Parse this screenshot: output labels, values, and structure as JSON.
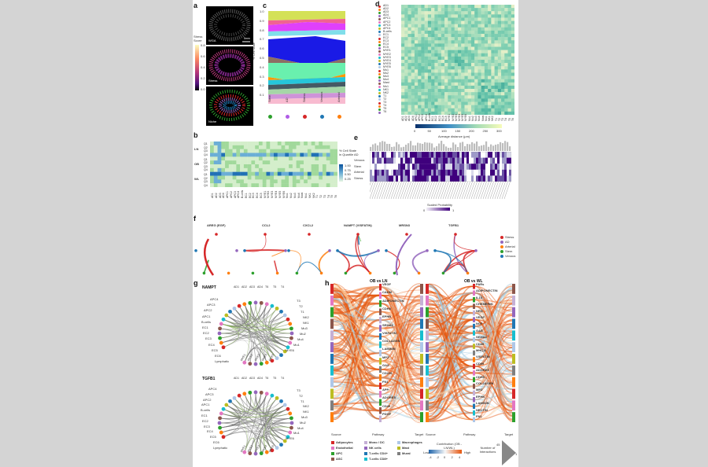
{
  "panel_a": {
    "label": "a",
    "scale_title": "Stress Score",
    "scale_ticks": [
      "0.8",
      "0.6",
      "0.4",
      "0.2",
      "0.0"
    ],
    "scalebar": "5mm",
    "images": [
      "WGA",
      "Stress",
      "Niche"
    ]
  },
  "panel_b": {
    "label": "b",
    "groups": [
      "LN",
      "OB",
      "WL"
    ],
    "quartiles": [
      "Q1",
      "Q2",
      "Q3",
      "Q4"
    ],
    "legend_title": "% Cell State in Quartile",
    "legend_ticks": [
      "1.00",
      "0.75",
      "0.50",
      "0.25"
    ]
  },
  "panel_c": {
    "label": "c",
    "ylabel": "% Cell State",
    "yticks": [
      "1.0",
      "0.9",
      "0.8",
      "0.7",
      "0.6",
      "0.5",
      "0.4",
      "0.3",
      "0.2",
      "0.1"
    ],
    "states": [
      "Stem",
      "AD",
      "Stress",
      "Venous",
      "Arterial"
    ],
    "state_colors": [
      "#2ca02c",
      "#b05ce6",
      "#d62728",
      "#1f77b4",
      "#ff7f0e"
    ]
  },
  "panel_d": {
    "label": "d",
    "cell_types": [
      "AD1",
      "AD2",
      "AD3",
      "AD4",
      "APC1",
      "APC2",
      "APC3",
      "APC4",
      "B-cells",
      "EC1",
      "EC2",
      "EC3",
      "EC4",
      "EC5",
      "MYE1",
      "MYE2",
      "MYE3",
      "MYE4",
      "MYE5",
      "MYE6",
      "Mu1",
      "Mu2",
      "Mu3",
      "Mu4",
      "Mast",
      "Mu1",
      "NK1",
      "NK2",
      "T1",
      "T2",
      "T3",
      "T4",
      "T5",
      "T6"
    ],
    "colorbar_ticks": [
      "0",
      "50",
      "100",
      "150",
      "200",
      "250",
      "300"
    ],
    "colorbar_label": "Average distance (µm)"
  },
  "panel_e": {
    "label": "e",
    "rows": [
      "AD",
      "Venous",
      "Stem",
      "Arterial",
      "Stress"
    ],
    "colorbar_label": "Scaled Probability",
    "colorbar_ticks": [
      "0",
      "1"
    ]
  },
  "panel_f": {
    "label": "f",
    "titles": [
      "AREG (EGF)",
      "CCL2",
      "CXCL2",
      "NAMPT (VISFATIN)",
      "MRSN3",
      "TGFB1"
    ],
    "legend": [
      {
        "name": "Stress",
        "color": "#d62728"
      },
      {
        "name": "AD",
        "color": "#9467bd"
      },
      {
        "name": "Arterial",
        "color": "#ff7f0e"
      },
      {
        "name": "Stem",
        "color": "#2ca02c"
      },
      {
        "name": "Venous",
        "color": "#1f77b4"
      }
    ]
  },
  "panel_g": {
    "label": "g",
    "top_title": "NAMPT",
    "bottom_title": "TGFB1",
    "left_labels": [
      "APC4",
      "APC3",
      "APC2",
      "APC1",
      "B-cells",
      "EC1",
      "EC2",
      "EC3",
      "EC4",
      "EC5",
      "EC6",
      "Lymphatic"
    ],
    "right_labels": [
      "T3",
      "T2",
      "T1",
      "NK2",
      "NK1",
      "Mu3",
      "Mu2",
      "Mu4",
      "Mu1",
      "MYE6"
    ],
    "bottom_labels": [
      "MYE1",
      "MYE2",
      "MYE3",
      "MYE4",
      "MYE5"
    ],
    "top_labels": [
      "AD1",
      "AD2",
      "AD3",
      "AD4",
      "T6",
      "T5",
      "T4"
    ]
  },
  "panel_h": {
    "label": "h",
    "left_title": "OB vs LN",
    "right_title": "OB vs WL",
    "left_pathways": [
      "VEGF",
      "CADM",
      "ADIPONECTIN",
      "CDH5",
      "EPHB",
      "SEMA3",
      "VISFATIN",
      "COLLAGEN",
      "LAMININ",
      "MPZ",
      "GAS",
      "CD226",
      "FN1",
      "APP",
      "ADGRE5",
      "CD45",
      "PDGF"
    ],
    "right_pathways": [
      "PARs",
      "ADIPONECTIN",
      "IL16",
      "CHEMERIN",
      "NRG",
      "VEGF",
      "NGF",
      "GAS",
      "SEMA3",
      "CD45",
      "MHC-II",
      "VISFATIN",
      "CD99",
      "ADGRE5",
      "CDH5",
      "COLLAGEN",
      "MPZ",
      "EPHB",
      "LAMININ",
      "NECTIN",
      "FN1"
    ],
    "axis_labels": [
      "Source",
      "Pathway",
      "Target"
    ],
    "legend_items": [
      {
        "name": "Adipocytes",
        "color": "#d62728"
      },
      {
        "name": "Endothelial",
        "color": "#e377c2"
      },
      {
        "name": "APC",
        "color": "#2ca02c"
      },
      {
        "name": "ASC",
        "color": "#8c564b"
      },
      {
        "name": "Mono / DC",
        "color": "#c5b0d5"
      },
      {
        "name": "NK cells",
        "color": "#9467bd"
      },
      {
        "name": "T-cells CD4+",
        "color": "#1f77b4"
      },
      {
        "name": "T-cells CD8+",
        "color": "#17becf"
      },
      {
        "name": "Macrophages",
        "color": "#aec7e8"
      },
      {
        "name": "Mast",
        "color": "#bcbd22"
      },
      {
        "name": "Mural",
        "color": "#7f7f7f"
      }
    ],
    "contribution_label": "Contribution (OB - LN/WL)",
    "contribution_ticks": [
      "-4",
      "-2",
      "0",
      "2",
      "4"
    ],
    "contribution_ends": [
      "Low",
      "High"
    ],
    "interactions_label": "Number of Interactions",
    "interactions_ticks": [
      "45",
      "1"
    ]
  }
}
